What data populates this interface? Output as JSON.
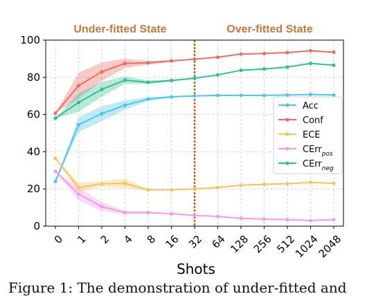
{
  "chart_data": {
    "type": "line",
    "xlabel": "Shots",
    "ylabel": "",
    "categories": [
      "0",
      "1",
      "2",
      "4",
      "8",
      "16",
      "32",
      "64",
      "128",
      "256",
      "512",
      "1024",
      "2048"
    ],
    "ylim": [
      0,
      100
    ],
    "yticks": [
      0,
      20,
      40,
      60,
      80,
      100
    ],
    "grid": true,
    "legend_position": "right",
    "divider_category": "32",
    "annotations": [
      "Under-fitted State",
      "Over-fitted State"
    ],
    "series": [
      {
        "name": "Acc",
        "color": "#4dc3ee",
        "values": [
          24,
          54.5,
          60.5,
          65,
          68.3,
          69.5,
          70,
          70.3,
          70.3,
          70.3,
          70.5,
          70.8,
          70.5
        ],
        "band": [
          0,
          4,
          4,
          2.5,
          1,
          0.5,
          0,
          0,
          0,
          0,
          0,
          0,
          0
        ]
      },
      {
        "name": "Conf",
        "color": "#ef6a62",
        "values": [
          60.7,
          75.5,
          83,
          87.5,
          87.8,
          88.8,
          89.8,
          90.8,
          92.5,
          92.8,
          93.3,
          94.3,
          93.5
        ],
        "band": [
          0,
          7,
          5,
          2.5,
          1,
          0.5,
          0,
          0,
          0,
          0,
          0,
          0,
          0
        ]
      },
      {
        "name": "ECE",
        "color": "#f2c45a",
        "values": [
          36.5,
          20.8,
          22.7,
          23,
          19.5,
          19.5,
          20,
          20.8,
          22,
          22.5,
          22.8,
          23.5,
          23
        ],
        "band": [
          0,
          2.5,
          1.5,
          2.5,
          0.5,
          0,
          0,
          0,
          0,
          0,
          0,
          0,
          0
        ]
      },
      {
        "name": "CErr_pos",
        "color": "#f49ae6",
        "values": [
          29.5,
          17.2,
          10.5,
          7.3,
          7.3,
          6.7,
          5.8,
          5.2,
          4.2,
          3.8,
          3.5,
          3,
          3.5
        ],
        "band": [
          0,
          3.5,
          2.5,
          1,
          0.5,
          0,
          0,
          0,
          0,
          0,
          0,
          0,
          0
        ]
      },
      {
        "name": "CErr_neg",
        "color": "#2fc08f",
        "values": [
          58,
          66.5,
          73.5,
          78.5,
          77.3,
          78.3,
          79.5,
          81.3,
          83.8,
          84.5,
          85.5,
          87.5,
          86.5
        ],
        "band": [
          0,
          5,
          4,
          2,
          1,
          0.5,
          0,
          0,
          0,
          0,
          0,
          0,
          0
        ]
      }
    ]
  },
  "legend": {
    "items": [
      {
        "base": "Acc",
        "sub": ""
      },
      {
        "base": "Conf",
        "sub": ""
      },
      {
        "base": "ECE",
        "sub": ""
      },
      {
        "base": "CErr",
        "sub": "pos"
      },
      {
        "base": "CErr",
        "sub": "neg"
      }
    ]
  },
  "caption": "Figure 1: The demonstration of under-fitted and"
}
